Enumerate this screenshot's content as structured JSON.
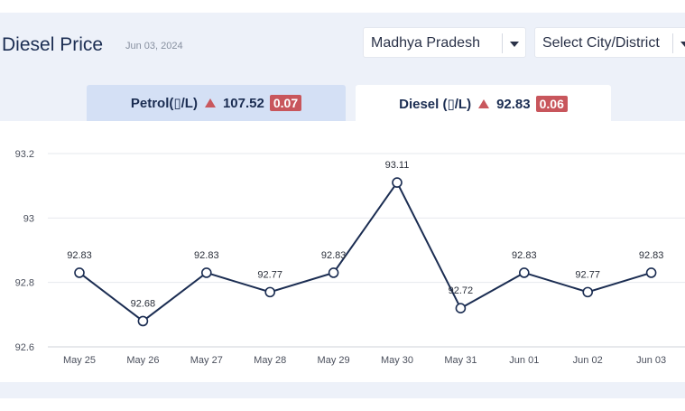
{
  "header": {
    "title": "Diesel Price",
    "date": "Jun 03, 2024"
  },
  "filters": {
    "state": "Madhya Pradesh",
    "city": "Select City/District"
  },
  "tabs": {
    "petrol": {
      "label": "Petrol(▯/L)",
      "price": "107.52",
      "change": "0.07"
    },
    "diesel": {
      "label": "Diesel (▯/L)",
      "price": "92.83",
      "change": "0.06"
    }
  },
  "colors": {
    "line": "#1b2d52",
    "badge": "#c8565c",
    "tab_active": "#ffffff",
    "tab_inactive": "#d4e0f5"
  },
  "chart_data": {
    "type": "line",
    "categories": [
      "May 25",
      "May 26",
      "May 27",
      "May 28",
      "May 29",
      "May 30",
      "May 31",
      "Jun 01",
      "Jun 02",
      "Jun 03"
    ],
    "values": [
      92.83,
      92.68,
      92.83,
      92.77,
      92.83,
      93.11,
      92.72,
      92.83,
      92.77,
      92.83
    ],
    "data_labels": [
      "92.83",
      "92.68",
      "92.83",
      "92.77",
      "92.83",
      "93.11",
      "92.72",
      "92.83",
      "92.77",
      "92.83"
    ],
    "ylim": [
      92.6,
      93.2
    ],
    "yticks": [
      "92.6",
      "92.8",
      "93",
      "93.2"
    ],
    "grid": true,
    "markers": "hollow-circle"
  }
}
